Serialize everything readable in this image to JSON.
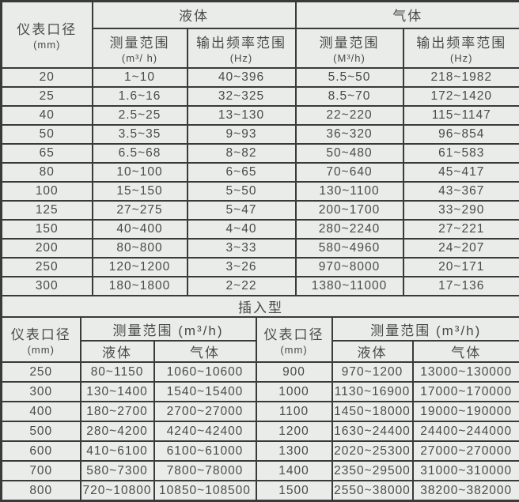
{
  "colors": {
    "background": "#e9ece9",
    "border": "#3a3a3a",
    "text": "#4a4a4a"
  },
  "top_table": {
    "diameter_line1": "仪表口径",
    "diameter_line2": "(mm)",
    "liquid_label": "液体",
    "gas_label": "气体",
    "measure_range_label": "测量范围",
    "liquid_measure_unit": "(m³/ h)",
    "gas_measure_unit": "(M³/h)",
    "freq_range_label": "输出频率范围",
    "freq_unit": "(Hz)",
    "rows": [
      [
        "20",
        "1~10",
        "40~396",
        "5.5~50",
        "218~1982"
      ],
      [
        "25",
        "1.6~16",
        "32~325",
        "8.5~70",
        "172~1420"
      ],
      [
        "40",
        "2.5~25",
        "13~130",
        "22~220",
        "115~1147"
      ],
      [
        "50",
        "3.5~35",
        "9~93",
        "36~320",
        "96~854"
      ],
      [
        "65",
        "6.5~68",
        "8~82",
        "50~480",
        "61~583"
      ],
      [
        "80",
        "10~100",
        "6~65",
        "70~640",
        "45~417"
      ],
      [
        "100",
        "15~150",
        "5~50",
        "130~1100",
        "43~367"
      ],
      [
        "125",
        "27~275",
        "5~47",
        "200~1700",
        "33~290"
      ],
      [
        "150",
        "40~400",
        "4~40",
        "280~2240",
        "27~221"
      ],
      [
        "200",
        "80~800",
        "3~33",
        "580~4960",
        "24~207"
      ],
      [
        "250",
        "120~1200",
        "3~26",
        "970~8000",
        "20~171"
      ],
      [
        "300",
        "180~1800",
        "2~22",
        "1380~11000",
        "17~136"
      ]
    ]
  },
  "section_label": "插入型",
  "bottom_table": {
    "left_diameter_line1": "仪表口径",
    "left_diameter_line2": "(mm)",
    "left_measure_range": "测量范围 (m³/h)",
    "left_liquid_label": "液体",
    "left_gas_label": "气体",
    "right_diameter_line1": "仪表口径",
    "right_diameter_line2": "(mm)",
    "right_measure_range": "测量范围 (m³/h)",
    "right_liquid_label": "液体",
    "right_gas_label": "气体",
    "rows": [
      [
        "250",
        "80~1150",
        "1060~10600",
        "900",
        "970~1200",
        "13000~130000"
      ],
      [
        "300",
        "130~1400",
        "1540~15400",
        "1000",
        "1130~16900",
        "17000~170000"
      ],
      [
        "400",
        "180~2700",
        "2700~27000",
        "1100",
        "1450~18000",
        "19000~190000"
      ],
      [
        "500",
        "280~4200",
        "4240~42400",
        "1200",
        "1630~24400",
        "24400~244000"
      ],
      [
        "600",
        "410~6100",
        "6100~61000",
        "1300",
        "2020~25300",
        "27000~270000"
      ],
      [
        "700",
        "580~7300",
        "7800~78000",
        "1400",
        "2350~29500",
        "31000~310000"
      ],
      [
        "800",
        "720~10800",
        "10850~108500",
        "1500",
        "2550~38000",
        "38200~382000"
      ]
    ]
  }
}
